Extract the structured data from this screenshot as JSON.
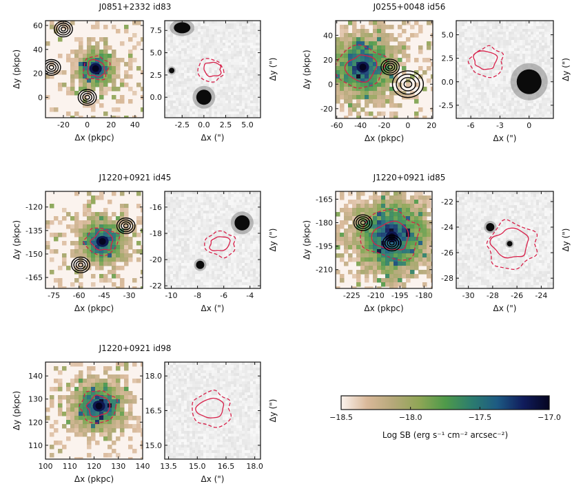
{
  "chart_data": [
    {
      "type": "image",
      "title": "J0851+2332 id83",
      "left_panel": {
        "xlabel": "Δx (pkpc)",
        "ylabel": "Δy (pkpc)",
        "xlim": [
          -35,
          47
        ],
        "ylim": [
          -17,
          64
        ],
        "xticks": [
          "-20",
          "0",
          "20",
          "40"
        ],
        "xtick_values": [
          -20,
          0,
          20,
          40
        ],
        "yticks": [
          "0",
          "20",
          "40",
          "60"
        ],
        "ytick_values": [
          0,
          20,
          40,
          60
        ],
        "emission_peak": [
          7,
          24
        ],
        "continuum_sources": [
          [
            -20,
            57
          ],
          [
            0,
            0
          ],
          [
            -30,
            25
          ]
        ]
      },
      "right_panel": {
        "xlabel": "Δx (\")",
        "ylabel": "Δy (\")",
        "xlim": [
          -4.5,
          6.5
        ],
        "ylim": [
          -2.3,
          8.6
        ],
        "xticks": [
          "-2.5",
          "0.0",
          "2.5",
          "5.0"
        ],
        "xtick_values": [
          -2.5,
          0,
          2.5,
          5
        ],
        "yticks": [
          "0.0",
          "2.5",
          "5.0",
          "7.5"
        ],
        "ytick_values": [
          0,
          2.5,
          5,
          7.5
        ],
        "red_contour_center": [
          0.9,
          3.1
        ]
      }
    },
    {
      "type": "image",
      "title": "J0255+0048 id56",
      "left_panel": {
        "xlabel": "Δx (pkpc)",
        "ylabel": "Δy (pkpc)",
        "xlim": [
          -61,
          21
        ],
        "ylim": [
          -28,
          52
        ],
        "xticks": [
          "-60",
          "-40",
          "-20",
          "0",
          "20"
        ],
        "xtick_values": [
          -60,
          -40,
          -20,
          0,
          20
        ],
        "yticks": [
          "-20",
          "0",
          "20",
          "40"
        ],
        "ytick_values": [
          -20,
          0,
          20,
          40
        ],
        "emission_peak": [
          -38,
          14
        ],
        "continuum_sources": [
          [
            0,
            0
          ],
          [
            -15,
            14
          ]
        ]
      },
      "right_panel": {
        "xlabel": "Δx (\")",
        "ylabel": "Δy (\")",
        "xlim": [
          -7.5,
          2.5
        ],
        "ylim": [
          -3.9,
          6.5
        ],
        "xticks": [
          "-6",
          "-3",
          "0"
        ],
        "xtick_values": [
          -6,
          -3,
          0
        ],
        "yticks": [
          "-2.5",
          "0.0",
          "2.5",
          "5.0"
        ],
        "ytick_values": [
          -2.5,
          0,
          2.5,
          5
        ],
        "red_contour_center": [
          -4.5,
          2.2
        ]
      }
    },
    {
      "type": "image",
      "title": "J1220+0921 id45",
      "left_panel": {
        "xlabel": "Δx (pkpc)",
        "ylabel": "Δy (pkpc)",
        "xlim": [
          -80,
          -22
        ],
        "ylim": [
          -172,
          -110
        ],
        "xticks": [
          "-75",
          "-60",
          "-45",
          "-30"
        ],
        "xtick_values": [
          -75,
          -60,
          -45,
          -30
        ],
        "yticks": [
          "-120",
          "-135",
          "-150",
          "-165"
        ],
        "ytick_values": [
          -120,
          -135,
          -150,
          -165
        ],
        "emission_peak": [
          -46,
          -142
        ],
        "continuum_sources": [
          [
            -32,
            -132
          ],
          [
            -59,
            -157
          ]
        ]
      },
      "right_panel": {
        "xlabel": "Δx (\")",
        "ylabel": "Δy (\")",
        "xlim": [
          -10.5,
          -3.2
        ],
        "ylim": [
          -22.2,
          -14.8
        ],
        "xticks": [
          "-10",
          "-8",
          "-6",
          "-4"
        ],
        "xtick_values": [
          -10,
          -8,
          -6,
          -4
        ],
        "yticks": [
          "-16",
          "-18",
          "-20",
          "-22"
        ],
        "ytick_values": [
          -16,
          -18,
          -20,
          -22
        ],
        "red_contour_center": [
          -6.3,
          -18.8
        ]
      }
    },
    {
      "type": "image",
      "title": "J1220+0921 id85",
      "left_panel": {
        "xlabel": "Δx (pkpc)",
        "ylabel": "Δy (pkpc)",
        "xlim": [
          -235,
          -175
        ],
        "ylim": [
          -222,
          -160
        ],
        "xticks": [
          "-225",
          "-210",
          "-195",
          "-180"
        ],
        "xtick_values": [
          -225,
          -210,
          -195,
          -180
        ],
        "yticks": [
          "-165",
          "-180",
          "-195",
          "-210"
        ],
        "ytick_values": [
          -165,
          -180,
          -195,
          -210
        ],
        "emission_peak": [
          -200,
          -189
        ],
        "continuum_sources": [
          [
            -218,
            -180
          ],
          [
            -200,
            -193
          ]
        ]
      },
      "right_panel": {
        "xlabel": "Δx (\")",
        "ylabel": "Δy (\")",
        "xlim": [
          -31,
          -23
        ],
        "ylim": [
          -28.8,
          -21.2
        ],
        "xticks": [
          "-30",
          "-28",
          "-26",
          "-24"
        ],
        "xtick_values": [
          -30,
          -28,
          -26,
          -24
        ],
        "yticks": [
          "-22",
          "-24",
          "-26",
          "-28"
        ],
        "ytick_values": [
          -22,
          -24,
          -26,
          -28
        ],
        "red_contour_center": [
          -26.5,
          -25.3
        ]
      }
    },
    {
      "type": "image",
      "title": "J1220+0921 id98",
      "left_panel": {
        "xlabel": "Δx (pkpc)",
        "ylabel": "Δy (pkpc)",
        "xlim": [
          100,
          140
        ],
        "ylim": [
          104,
          146
        ],
        "xticks": [
          "100",
          "110",
          "120",
          "130",
          "140"
        ],
        "xtick_values": [
          100,
          110,
          120,
          130,
          140
        ],
        "yticks": [
          "110",
          "120",
          "130",
          "140"
        ],
        "ytick_values": [
          110,
          120,
          130,
          140
        ],
        "emission_peak": [
          122,
          127
        ]
      },
      "right_panel": {
        "xlabel": "Δx (\")",
        "ylabel": "Δy (\")",
        "xlim": [
          13.3,
          18.3
        ],
        "ylim": [
          14.4,
          18.6
        ],
        "xticks": [
          "13.5",
          "15.0",
          "16.5",
          "18.0"
        ],
        "xtick_values": [
          13.5,
          15.0,
          16.5,
          18.0
        ],
        "yticks": [
          "15.0",
          "16.5",
          "18.0"
        ],
        "ytick_values": [
          15.0,
          16.5,
          18.0
        ],
        "red_contour_center": [
          15.7,
          16.6
        ]
      }
    },
    {
      "type": "colorbar",
      "label": "Log SB (erg s⁻¹ cm⁻² arcsec⁻²)",
      "range": [
        -18.5,
        -17.0
      ],
      "ticks": [
        "−18.5",
        "−18.0",
        "−17.5",
        "−17.0"
      ],
      "tick_values": [
        -18.5,
        -18.0,
        -17.5,
        -17.0
      ],
      "colors": [
        "#fbf3ee",
        "#d9b899",
        "#b5a879",
        "#8fa656",
        "#4f9a4a",
        "#2c7d6e",
        "#1d5a83",
        "#101c5c",
        "#050520"
      ]
    }
  ]
}
